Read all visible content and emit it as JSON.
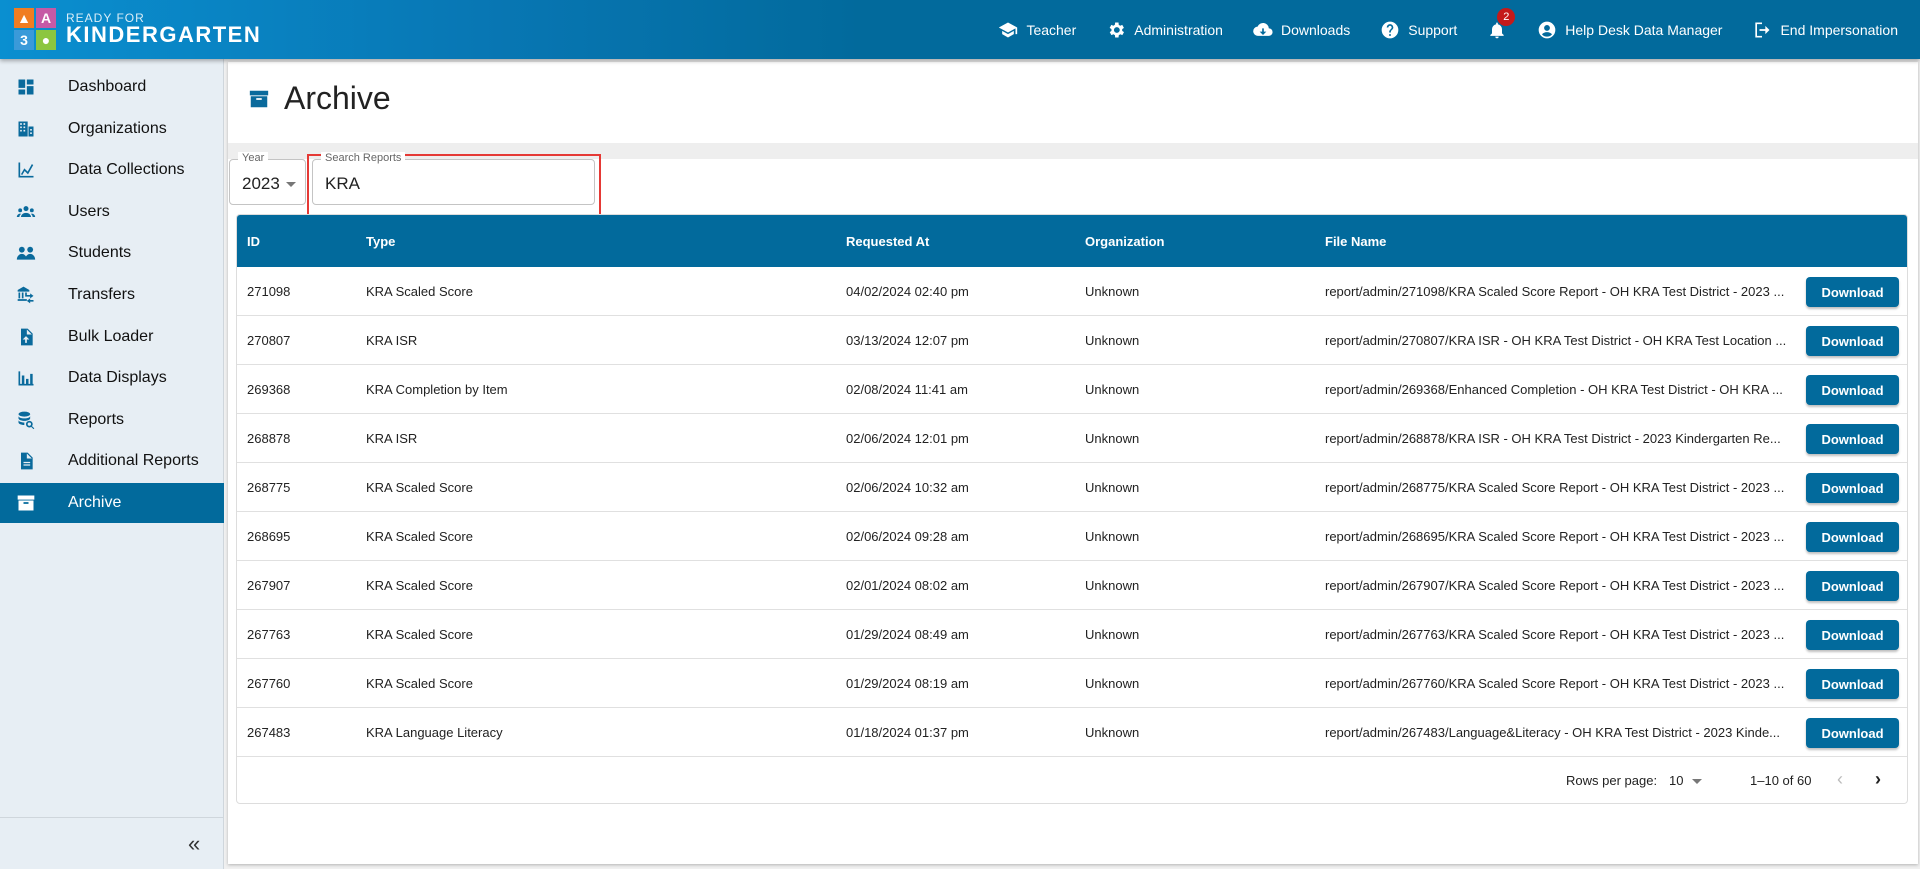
{
  "brand": {
    "line1": "READY FOR",
    "line2": "KINDERGARTEN",
    "blocks": [
      "▲",
      "A",
      "3",
      "●"
    ]
  },
  "topnav": [
    {
      "label": "Teacher",
      "icon": "graduation-cap-icon"
    },
    {
      "label": "Administration",
      "icon": "gear-icon"
    },
    {
      "label": "Downloads",
      "icon": "cloud-download-icon"
    },
    {
      "label": "Support",
      "icon": "help-icon"
    },
    {
      "label": "",
      "icon": "bell-icon",
      "badge": "2"
    },
    {
      "label": "Help Desk Data Manager",
      "icon": "user-circle-icon"
    },
    {
      "label": "End Impersonation",
      "icon": "logout-icon"
    }
  ],
  "sidebar": {
    "items": [
      {
        "label": "Dashboard",
        "icon": "dashboard-icon"
      },
      {
        "label": "Organizations",
        "icon": "building-icon"
      },
      {
        "label": "Data Collections",
        "icon": "line-chart-icon"
      },
      {
        "label": "Users",
        "icon": "users-icon"
      },
      {
        "label": "Students",
        "icon": "students-icon"
      },
      {
        "label": "Transfers",
        "icon": "transfers-icon"
      },
      {
        "label": "Bulk Loader",
        "icon": "file-upload-icon"
      },
      {
        "label": "Data Displays",
        "icon": "bar-chart-icon"
      },
      {
        "label": "Reports",
        "icon": "database-search-icon"
      },
      {
        "label": "Additional Reports",
        "icon": "document-icon"
      },
      {
        "label": "Archive",
        "icon": "archive-icon",
        "active": true
      }
    ],
    "collapse": "«"
  },
  "page": {
    "title": "Archive"
  },
  "filters": {
    "year_label": "Year",
    "year_value": "2023",
    "search_label": "Search Reports",
    "search_value": "KRA"
  },
  "table": {
    "columns": [
      "ID",
      "Type",
      "Requested At",
      "Organization",
      "File Name"
    ],
    "download_label": "Download",
    "rows": [
      [
        "271098",
        "KRA Scaled Score",
        "04/02/2024 02:40 pm",
        "Unknown",
        "report/admin/271098/KRA Scaled Score Report - OH KRA Test District - 2023 ..."
      ],
      [
        "270807",
        "KRA ISR",
        "03/13/2024 12:07 pm",
        "Unknown",
        "report/admin/270807/KRA ISR - OH KRA Test District - OH KRA Test Location ..."
      ],
      [
        "269368",
        "KRA Completion by Item",
        "02/08/2024 11:41 am",
        "Unknown",
        "report/admin/269368/Enhanced Completion - OH KRA Test District - OH KRA ..."
      ],
      [
        "268878",
        "KRA ISR",
        "02/06/2024 12:01 pm",
        "Unknown",
        "report/admin/268878/KRA ISR - OH KRA Test District - 2023 Kindergarten Re..."
      ],
      [
        "268775",
        "KRA Scaled Score",
        "02/06/2024 10:32 am",
        "Unknown",
        "report/admin/268775/KRA Scaled Score Report - OH KRA Test District - 2023 ..."
      ],
      [
        "268695",
        "KRA Scaled Score",
        "02/06/2024 09:28 am",
        "Unknown",
        "report/admin/268695/KRA Scaled Score Report - OH KRA Test District - 2023 ..."
      ],
      [
        "267907",
        "KRA Scaled Score",
        "02/01/2024 08:02 am",
        "Unknown",
        "report/admin/267907/KRA Scaled Score Report - OH KRA Test District - 2023 ..."
      ],
      [
        "267763",
        "KRA Scaled Score",
        "01/29/2024 08:49 am",
        "Unknown",
        "report/admin/267763/KRA Scaled Score Report - OH KRA Test District - 2023 ..."
      ],
      [
        "267760",
        "KRA Scaled Score",
        "01/29/2024 08:19 am",
        "Unknown",
        "report/admin/267760/KRA Scaled Score Report - OH KRA Test District - 2023 ..."
      ],
      [
        "267483",
        "KRA Language Literacy",
        "01/18/2024 01:37 pm",
        "Unknown",
        "report/admin/267483/Language&Literacy - OH KRA Test District - 2023 Kinde..."
      ]
    ]
  },
  "pagination": {
    "rows_per_page_label": "Rows per page:",
    "rows_per_page": "10",
    "range": "1–10 of 60"
  },
  "colors": {
    "primary": "#026a9c",
    "highlight": "#e53935",
    "badge": "#c41a1a"
  }
}
